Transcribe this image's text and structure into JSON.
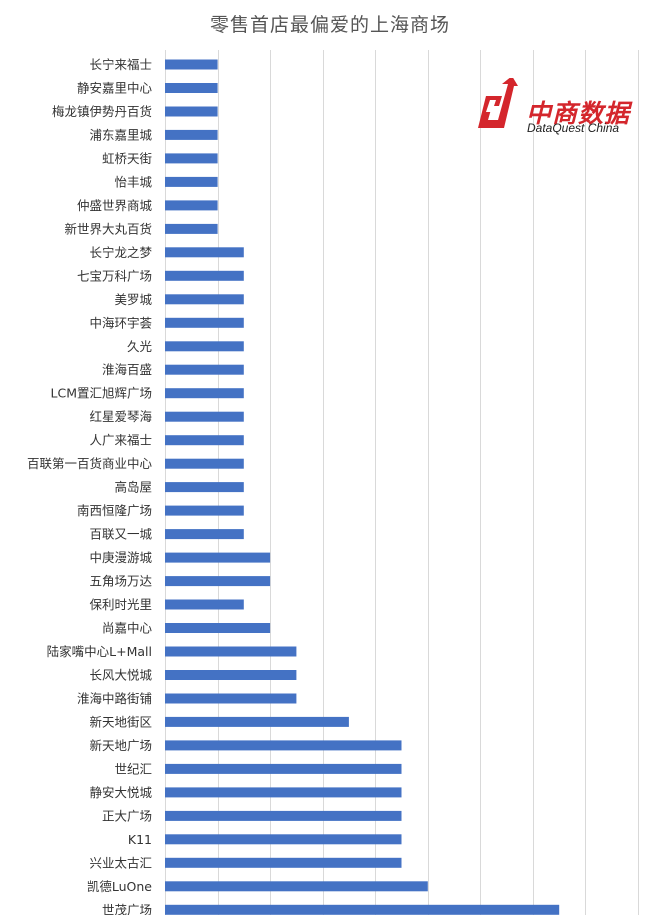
{
  "chart_data": {
    "type": "bar",
    "orientation": "horizontal",
    "title": "零售首店最偏爱的上海商场",
    "categories": [
      "长宁来福士",
      "静安嘉里中心",
      "梅龙镇伊势丹百货",
      "浦东嘉里城",
      "虹桥天街",
      "怡丰城",
      "仲盛世界商城",
      "新世界大丸百货",
      "长宁龙之梦",
      "七宝万科广场",
      "美罗城",
      "中海环宇荟",
      "久光",
      "淮海百盛",
      "LCM置汇旭辉广场",
      "红星爱琴海",
      "人广来福士",
      "百联第一百货商业中心",
      "高岛屋",
      "南西恒隆广场",
      "百联又一城",
      "中庚漫游城",
      "五角场万达",
      "保利时光里",
      "尚嘉中心",
      "陆家嘴中心L+Mall",
      "长风大悦城",
      "淮海中路街铺",
      "新天地街区",
      "新天地广场",
      "世纪汇",
      "静安大悦城",
      "正大广场",
      "K11",
      "兴业太古汇",
      "凯德LuOne",
      "世茂广场"
    ],
    "values": [
      2,
      2,
      2,
      2,
      2,
      2,
      2,
      2,
      3,
      3,
      3,
      3,
      3,
      3,
      3,
      3,
      3,
      3,
      3,
      3,
      3,
      4,
      4,
      3,
      4,
      5,
      5,
      5,
      7,
      9,
      9,
      9,
      9,
      9,
      9,
      10,
      15
    ],
    "xlim": [
      0,
      18
    ],
    "grid": true,
    "color": "#4472c4"
  },
  "logo": {
    "text_cn": "中商数据",
    "text_en": "DataQuest China",
    "color": "#d4262c"
  }
}
